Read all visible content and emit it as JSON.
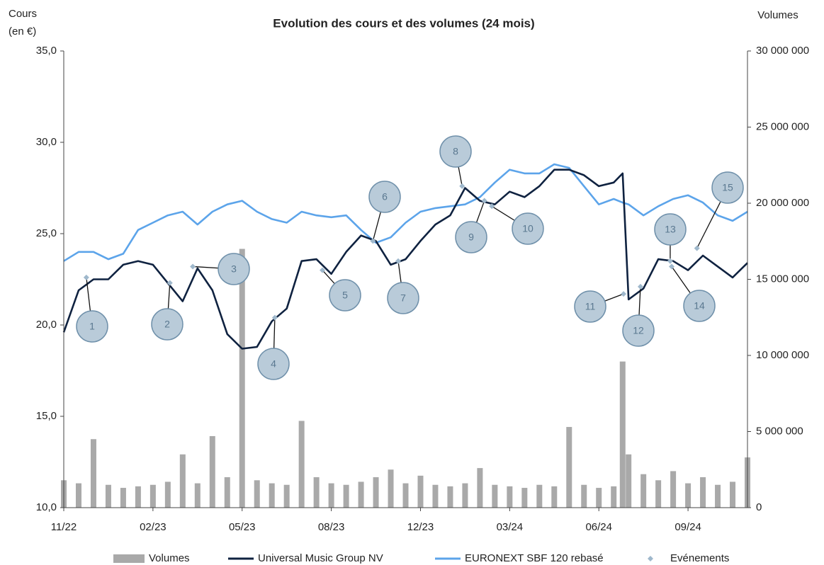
{
  "chart_data": {
    "type": "line",
    "title": "Evolution des cours et des volumes (24 mois)",
    "y_label": [
      "Cours",
      "(en €)"
    ],
    "y2_label": "Volumes",
    "x": [
      0,
      0.5,
      1,
      1.5,
      2,
      2.5,
      3,
      3.5,
      4,
      4.5,
      5,
      5.5,
      6,
      6.5,
      7,
      7.5,
      8,
      8.5,
      9,
      9.5,
      10,
      10.5,
      11,
      11.5,
      12,
      12.5,
      13,
      13.5,
      14,
      14.5,
      15,
      15.5,
      16,
      16.5,
      17,
      17.5,
      18,
      18.5,
      18.8,
      19,
      19.5,
      20,
      20.5,
      21,
      21.5,
      22,
      22.5,
      23
    ],
    "xlim": [
      0,
      23
    ],
    "xticks": [
      {
        "value": 0,
        "label": "11/22"
      },
      {
        "value": 3,
        "label": "02/23"
      },
      {
        "value": 6,
        "label": "05/23"
      },
      {
        "value": 9,
        "label": "08/23"
      },
      {
        "value": 12,
        "label": "12/23"
      },
      {
        "value": 15,
        "label": "03/24"
      },
      {
        "value": 18,
        "label": "06/24"
      },
      {
        "value": 21,
        "label": "09/24"
      }
    ],
    "ylim": [
      10,
      35
    ],
    "yticks": [
      {
        "value": 10,
        "label": "10,0"
      },
      {
        "value": 15,
        "label": "15,0"
      },
      {
        "value": 20,
        "label": "20,0"
      },
      {
        "value": 25,
        "label": "25,0"
      },
      {
        "value": 30,
        "label": "30,0"
      },
      {
        "value": 35,
        "label": "35,0"
      }
    ],
    "y2lim": [
      0,
      30000000
    ],
    "y2ticks": [
      0,
      {
        "value": 5000000,
        "label": "5 000 000"
      },
      {
        "value": 10000000,
        "label": "10 000 000"
      },
      {
        "value": 15000000,
        "label": "15 000 000"
      },
      {
        "value": 20000000,
        "label": "20 000 000"
      },
      {
        "value": 25000000,
        "label": "25 000 000"
      },
      {
        "value": 30000000,
        "label": "30 000 000"
      }
    ],
    "series": [
      {
        "name": "Volumes",
        "type": "bar",
        "axis": "y2",
        "color": "#a9a9a9",
        "values": [
          1800000,
          1600000,
          4500000,
          1500000,
          1300000,
          1400000,
          1500000,
          1700000,
          3500000,
          1600000,
          4700000,
          2000000,
          17000000,
          1800000,
          1600000,
          1500000,
          5700000,
          2000000,
          1600000,
          1500000,
          1700000,
          2000000,
          2500000,
          1600000,
          2100000,
          1500000,
          1400000,
          1600000,
          2600000,
          1500000,
          1400000,
          1300000,
          1500000,
          1400000,
          5300000,
          1500000,
          1300000,
          1400000,
          9600000,
          3500000,
          2200000,
          1800000,
          2400000,
          1600000,
          2000000,
          1500000,
          1700000,
          3300000
        ]
      },
      {
        "name": "Universal Music Group NV",
        "type": "line",
        "color": "#0f2240",
        "values": [
          19.6,
          21.9,
          22.5,
          22.5,
          23.3,
          23.5,
          23.3,
          22.3,
          21.3,
          23.1,
          21.9,
          19.5,
          18.7,
          18.8,
          20.2,
          20.9,
          23.5,
          23.6,
          22.8,
          24.0,
          24.9,
          24.6,
          23.3,
          23.6,
          24.6,
          25.5,
          26.0,
          27.5,
          26.8,
          26.6,
          27.3,
          27.0,
          27.6,
          28.5,
          28.5,
          28.2,
          27.6,
          27.8,
          28.3,
          21.4,
          22.0,
          23.6,
          23.5,
          23.0,
          23.8,
          23.2,
          22.6,
          23.4
        ]
      },
      {
        "name": "EURONEXT SBF 120 rebasé",
        "type": "line",
        "color": "#5ca4ea",
        "values": [
          23.5,
          24.0,
          24.0,
          23.6,
          23.9,
          25.2,
          25.6,
          26.0,
          26.2,
          25.5,
          26.2,
          26.6,
          26.8,
          26.2,
          25.8,
          25.6,
          26.2,
          26.0,
          25.9,
          26.0,
          25.2,
          24.5,
          24.8,
          25.6,
          26.2,
          26.4,
          26.5,
          26.6,
          27.0,
          27.8,
          28.5,
          28.3,
          28.3,
          28.8,
          28.6,
          27.6,
          26.6,
          26.9,
          26.7,
          26.6,
          26.0,
          26.5,
          26.9,
          27.1,
          26.7,
          26.0,
          25.7,
          26.2
        ]
      }
    ],
    "events": {
      "name": "Evénements",
      "color": "#9fb8cc",
      "points": [
        {
          "label": "1",
          "x": 0.76,
          "y": 22.6
        },
        {
          "label": "2",
          "x": 3.57,
          "y": 22.3
        },
        {
          "label": "3",
          "x": 4.34,
          "y": 23.2
        },
        {
          "label": "4",
          "x": 7.1,
          "y": 20.4
        },
        {
          "label": "5",
          "x": 8.7,
          "y": 23.0
        },
        {
          "label": "6",
          "x": 10.4,
          "y": 24.6
        },
        {
          "label": "7",
          "x": 11.25,
          "y": 23.5
        },
        {
          "label": "8",
          "x": 13.4,
          "y": 27.6
        },
        {
          "label": "9",
          "x": 14.15,
          "y": 26.8
        },
        {
          "label": "10",
          "x": 14.4,
          "y": 26.5
        },
        {
          "label": "11",
          "x": 18.83,
          "y": 21.7
        },
        {
          "label": "12",
          "x": 19.4,
          "y": 22.1
        },
        {
          "label": "13",
          "x": 20.4,
          "y": 23.5
        },
        {
          "label": "14",
          "x": 20.45,
          "y": 23.2
        },
        {
          "label": "15",
          "x": 21.3,
          "y": 24.2
        }
      ]
    }
  }
}
